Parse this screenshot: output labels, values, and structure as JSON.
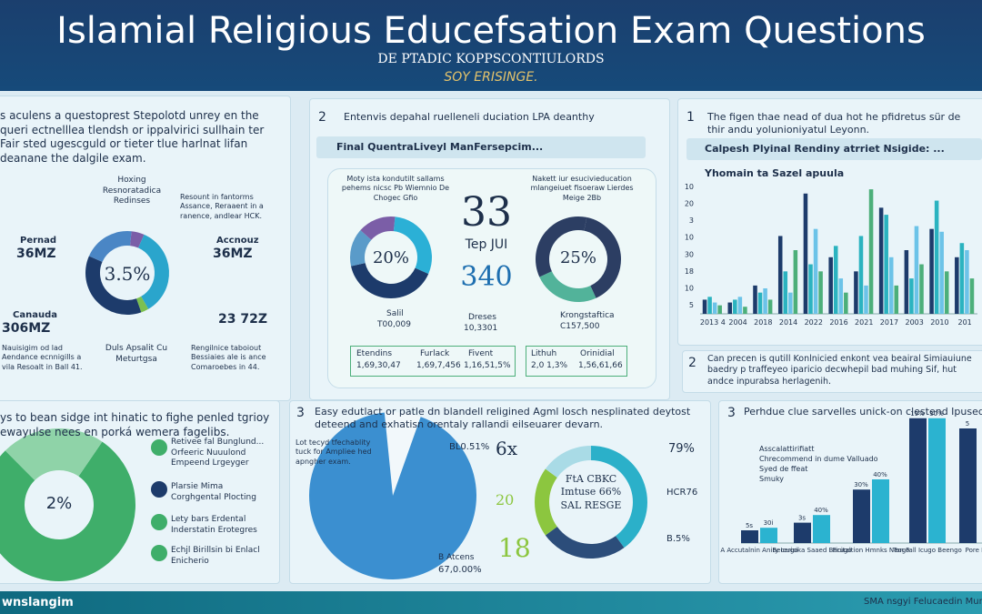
{
  "header": {
    "title": "Islamial Religious Educefsation Exam Questions",
    "subtitle": "DE PTADIC KOPPSCONTIULORDS",
    "tagline": "SOY ERISINGE."
  },
  "panel_top_left": {
    "text": "s aculens a questoprest Stepolotd unrey en the queri ectnelllea tlendsh or ippalvirici sullhain ter Fair sted ugescguld or tieter tlue harlnat lifan deanane the dalgile exam.",
    "donut": {
      "center": "3.5%",
      "segments": [
        {
          "color": "#7b5ea7",
          "value": 5
        },
        {
          "color": "#2aa5cc",
          "value": 35
        },
        {
          "color": "#7cc04f",
          "value": 3
        },
        {
          "color": "#1d3b6b",
          "value": 37
        },
        {
          "color": "#4a86c5",
          "value": 20
        }
      ]
    },
    "callouts": [
      "Hoxing Resnoratadica Redinses",
      "Pernad",
      "36MZ",
      "Accnouz",
      "36MZ",
      "Canauda",
      "306MZ",
      "23 72Z",
      "Duls Apsalit Cu Meturtgsa",
      "Resount in fantorms Assance, Reraaent in a ranence, andlear HCK.",
      "Nauisigim od lad Aendance ecnnigills a vila Resoalt in Ball 41.",
      "Rengilnice taboiout Bessiaies ale is ance Comaroebes in 44."
    ]
  },
  "panel_top_middle": {
    "number": "2",
    "text": "Entenvis depahal ruelleneli duciation LPA deanthy",
    "bar": "Final QuentraLiveyl ManFersepcim...",
    "note_left": "Moty ista kondutilt sallams pehems nicsc Pb Wiemnio De Chogec Gfio",
    "note_right": "Nakett iur esucivieducation mlangeiuet fisoeraw Lierdes Meige 2Bb",
    "big": "33",
    "mid": "Tep JUI",
    "big2": "340",
    "donut_left": {
      "center": "20%",
      "segments": [
        {
          "color": "#2bb0d6",
          "value": 30
        },
        {
          "color": "#1d3b6b",
          "value": 40
        },
        {
          "color": "#5a9bc9",
          "value": 15
        },
        {
          "color": "#7b5ea7",
          "value": 15
        }
      ]
    },
    "donut_right": {
      "center": "25%",
      "segments": [
        {
          "color": "#2c3e63",
          "value": 40
        },
        {
          "color": "#52b39a",
          "value": 25
        },
        {
          "color": "#2c3e63",
          "value": 35
        }
      ]
    },
    "legend": [
      "Salil",
      "T00,009",
      "Dreses",
      "10,3301",
      "Krongstaftica",
      "C157,500"
    ],
    "boxes": [
      "Etendins",
      "1,69,30,47",
      "Furlack",
      "1,69,7,456",
      "Fivent",
      "1,16,51,5%",
      "Lithuh",
      "2,0 1,3%",
      "Orinidial",
      "1,56,61,66"
    ]
  },
  "panel_top_right": {
    "number": "1",
    "text": "The figen thae nead of dua hot he pfidretus sür de thir andu yolunioniyatul Leyonn.",
    "bar": "Calpesh Plyinal Rendiny atrriet Nsigide: ...",
    "chart_title": "Yhomain ta Sazel apuula",
    "axis_labels": [
      "10",
      "20",
      "3",
      "10",
      "30",
      "18",
      "10",
      "5"
    ],
    "categories": [
      "2013 4",
      "2004",
      "2018",
      "2014",
      "2022",
      "2016",
      "2021",
      "2017",
      "2003",
      "2010",
      "201"
    ],
    "max": 90,
    "series": [
      {
        "color": "#1d3b6b",
        "values": [
          10,
          8,
          20,
          55,
          85,
          40,
          30,
          75,
          45,
          60,
          40
        ]
      },
      {
        "color": "#2bb3c0",
        "values": [
          12,
          10,
          15,
          30,
          35,
          48,
          55,
          70,
          25,
          80,
          50
        ]
      },
      {
        "color": "#6cc3e8",
        "values": [
          8,
          12,
          18,
          15,
          60,
          25,
          20,
          40,
          62,
          58,
          45
        ]
      },
      {
        "color": "#4caf7a",
        "values": [
          6,
          5,
          10,
          45,
          30,
          15,
          88,
          20,
          35,
          30,
          25
        ]
      }
    ]
  },
  "panel_mid_right": {
    "number": "2",
    "text": "Can precen is qutill Konlnicied enkont vea beairal Simiauiune baedry p traffeyeo iparicio decwhepil bad muhing Sif, hut andce inpurabsa herlagenih."
  },
  "panel_bottom_left": {
    "text": "ys to bean sidge int hinatic to fighe penled tgrioy ewayulse nees en porká wemera fagelibs.",
    "donut": {
      "center": "2%",
      "segments": [
        {
          "color": "#3fae6a",
          "value": 78
        },
        {
          "color": "#8fd3a8",
          "value": 22
        }
      ]
    },
    "items": [
      "Retivee fal Bunglund... Orfeeric Nuuulond Empeend Lrgeyger",
      "Plarsie Mima Corghgental Plocting",
      "Lety bars Erdental Inderstatin Erotegres",
      "Echjl Birillsin bi Enlacl Enicherio"
    ]
  },
  "panel_bottom_middle": {
    "number": "3",
    "text": "Easy edutlact or patle dn blandell religined Agml losch nesplinated deytost deteend and exhatisn orentaly rallandi eilseuarer devarn.",
    "pie": {
      "segments": [
        {
          "color": "#f2f8fb",
          "value": 7
        },
        {
          "color": "#3b8fd0",
          "value": 93
        }
      ]
    },
    "pie_labels": [
      "Lot tecyd tfechablity tuck for Ampliee hed apngher exam.",
      "BL0.51%",
      "B Atcens",
      "67,0.00%"
    ],
    "donut": {
      "center": "FtA CBKC Imtuse 66% SAL RESGE",
      "segments": [
        {
          "color": "#2bb0c9",
          "value": 40
        },
        {
          "color": "#2c4d7a",
          "value": 25
        },
        {
          "color": "#8cc63f",
          "value": 20
        },
        {
          "color": "#a9dbe6",
          "value": 15
        }
      ]
    },
    "callouts": [
      "6x",
      "20",
      "18",
      "79%",
      "HCR76",
      "B.5%"
    ]
  },
  "panel_bottom_right": {
    "number": "3",
    "text": "Perhdue clue sarvelles unick-on clestend Ipused the andu and sicn ceybar hadly exam cesarrd an the trecepbend.",
    "legend": [
      "Asscalattirifiatt",
      "Chrecommend in dume Valluado",
      "Syed de ffeat",
      "Smuky"
    ],
    "categories": [
      "A Accutalnin Aniry Icugo",
      "Becerisika Saaed Borugo",
      "Ficitaltion Hmnks Neogo",
      "Ton Fall Icugo Beengo",
      "Pore Bu"
    ],
    "series": [
      {
        "color": "#1d3b6b",
        "heights": [
          10,
          16,
          42,
          98,
          90
        ],
        "bar_labels": [
          "5s",
          "3s",
          "30%",
          "19%",
          "5"
        ]
      },
      {
        "color": "#2bb3d0",
        "heights": [
          12,
          22,
          50,
          98,
          0
        ],
        "bar_labels": [
          "30i",
          "40%",
          "40%",
          "30%",
          ""
        ]
      }
    ]
  },
  "footer": {
    "left": "wnslangim",
    "right": "SMA nsgyi Felucaedin Mun"
  }
}
